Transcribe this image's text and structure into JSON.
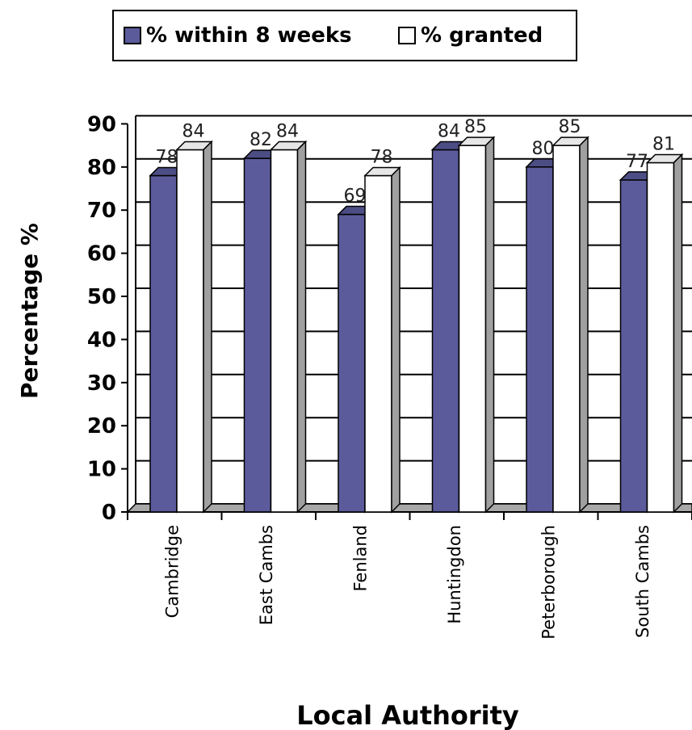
{
  "chart_data": {
    "type": "bar",
    "title": "",
    "xlabel": "Local Authority",
    "ylabel": "Percentage %",
    "ylim": [
      0,
      90
    ],
    "yticks": [
      0,
      10,
      20,
      30,
      40,
      50,
      60,
      70,
      80,
      90
    ],
    "grid": true,
    "legend_position": "top",
    "categories": [
      "Cambridge",
      "East Cambs",
      "Fenland",
      "Huntingdon",
      "Peterborough",
      "South Cambs"
    ],
    "series": [
      {
        "name": "% within 8 weeks",
        "values": [
          78,
          82,
          69,
          84,
          80,
          77
        ],
        "color": "#5b5b9c"
      },
      {
        "name": "% granted",
        "values": [
          84,
          84,
          78,
          85,
          85,
          81
        ],
        "color": "#ffffff"
      }
    ]
  }
}
